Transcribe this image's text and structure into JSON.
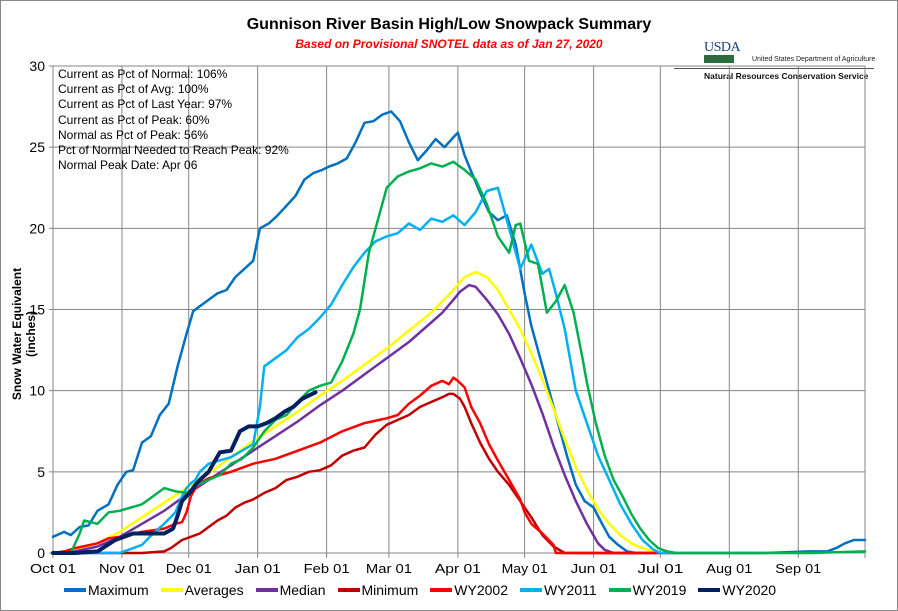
{
  "title": "Gunnison River Basin High/Low Snowpack Summary",
  "subtitle": "Based on Provisional SNOTEL data as of Jan 27, 2020",
  "logo": {
    "mark": "USDA",
    "department": "United States Department of Agriculture",
    "agency": "Natural Resources Conservation Service"
  },
  "stats": [
    "Current  as Pct of Normal: 106%",
    "Current  as Pct of Avg: 100%",
    "Current  as Pct of Last Year: 97%",
    "Current  as Pct of Peak: 60%",
    "Normal  as Pct of Peak: 56%",
    "Pct of Normal Needed  to Reach Peak: 92%",
    "Normal  Peak Date: Apr 06"
  ],
  "chart_data": {
    "type": "line",
    "title": "Gunnison River Basin High/Low Snowpack Summary",
    "subtitle": "Based on Provisional SNOTEL data as of Jan 27, 2020",
    "xlabel": "",
    "ylabel": "Snow Water Equivalent (inches)",
    "ylim": [
      0,
      30
    ],
    "yticks": [
      0,
      5,
      10,
      15,
      20,
      25,
      30
    ],
    "xlim_days": [
      0,
      365
    ],
    "xtick_labels": [
      "Oct 01",
      "Nov 01",
      "Dec 01",
      "Jan 01",
      "Feb 01",
      "Mar 01",
      "Apr 01",
      "May 01",
      "Jun 01",
      "Jul 01",
      "Aug 01",
      "Sep 01"
    ],
    "xtick_days": [
      0,
      31,
      61,
      92,
      123,
      151,
      182,
      212,
      243,
      273,
      304,
      335
    ],
    "grid": true,
    "legend_position": "bottom",
    "series": [
      {
        "name": "Maximum",
        "color": "#0070c0",
        "width": 2.5,
        "x": [
          0,
          5,
          8,
          12,
          16,
          20,
          25,
          29,
          33,
          36,
          40,
          44,
          48,
          52,
          56,
          60,
          63,
          66,
          70,
          74,
          78,
          82,
          86,
          90,
          93,
          97,
          101,
          105,
          109,
          113,
          117,
          121,
          124,
          128,
          132,
          136,
          140,
          144,
          148,
          152,
          156,
          160,
          164,
          168,
          172,
          176,
          180,
          182,
          185,
          188,
          192,
          196,
          200,
          204,
          208,
          212,
          215,
          219,
          223,
          227,
          231,
          235,
          239,
          243,
          246,
          250,
          254,
          258,
          262,
          266,
          270,
          274,
          278,
          282,
          286,
          290,
          300,
          320,
          340,
          348,
          352,
          356,
          360,
          365
        ],
        "y": [
          1.0,
          1.3,
          1.1,
          1.6,
          1.7,
          2.6,
          3.0,
          4.2,
          5.0,
          5.1,
          6.8,
          7.2,
          8.5,
          9.2,
          11.5,
          13.5,
          14.9,
          15.2,
          15.6,
          16.0,
          16.2,
          17.0,
          17.5,
          18.0,
          20.0,
          20.3,
          20.8,
          21.4,
          22.0,
          23.0,
          23.4,
          23.6,
          23.8,
          24.0,
          24.3,
          25.3,
          26.5,
          26.6,
          27.0,
          27.2,
          26.6,
          25.3,
          24.2,
          24.8,
          25.5,
          25.0,
          25.6,
          25.9,
          24.5,
          23.5,
          22.2,
          21.0,
          20.5,
          20.8,
          19.0,
          16.0,
          14.0,
          12.0,
          10.0,
          8.0,
          6.0,
          4.2,
          3.2,
          2.8,
          2.0,
          1.0,
          0.5,
          0.1,
          0.0,
          0.0,
          0.0,
          0.0,
          0.0,
          0.0,
          0.0,
          0.0,
          0.0,
          0.0,
          0.1,
          0.1,
          0.3,
          0.6,
          0.8,
          0.8
        ]
      },
      {
        "name": "Averages",
        "color": "#ffff00",
        "width": 2.5,
        "x": [
          0,
          10,
          20,
          30,
          40,
          50,
          60,
          70,
          80,
          90,
          100,
          110,
          120,
          130,
          140,
          150,
          160,
          170,
          175,
          180,
          185,
          190,
          195,
          200,
          205,
          210,
          215,
          220,
          225,
          230,
          235,
          240,
          245,
          250,
          255,
          260,
          265,
          270,
          273,
          280
        ],
        "y": [
          0.0,
          0.2,
          0.6,
          1.3,
          2.2,
          3.1,
          4.0,
          4.9,
          5.9,
          6.9,
          7.8,
          8.7,
          9.7,
          10.6,
          11.6,
          12.6,
          13.7,
          14.8,
          15.5,
          16.2,
          17.0,
          17.3,
          17.0,
          16.2,
          15.0,
          13.8,
          12.3,
          10.7,
          8.9,
          7.0,
          5.3,
          3.9,
          2.7,
          1.8,
          1.1,
          0.6,
          0.3,
          0.1,
          0.0,
          0.0
        ]
      },
      {
        "name": "Median",
        "color": "#7030a0",
        "width": 2.5,
        "x": [
          0,
          10,
          20,
          30,
          40,
          50,
          60,
          70,
          80,
          90,
          100,
          110,
          120,
          130,
          140,
          150,
          160,
          170,
          175,
          180,
          183,
          187,
          190,
          195,
          200,
          205,
          210,
          215,
          220,
          225,
          230,
          235,
          240,
          245,
          248,
          252,
          256,
          260,
          265
        ],
        "y": [
          0.0,
          0.1,
          0.4,
          1.0,
          1.8,
          2.6,
          3.6,
          4.5,
          5.4,
          6.3,
          7.2,
          8.1,
          9.1,
          10.0,
          11.0,
          12.0,
          13.0,
          14.2,
          14.8,
          15.6,
          16.1,
          16.5,
          16.4,
          15.6,
          14.7,
          13.5,
          12.0,
          10.4,
          8.6,
          6.6,
          4.8,
          3.2,
          1.8,
          0.6,
          0.2,
          0.0,
          0.0,
          0.0,
          0.0
        ]
      },
      {
        "name": "Minimum",
        "color": "#c00000",
        "width": 2.5,
        "x": [
          0,
          20,
          40,
          50,
          53,
          58,
          62,
          66,
          70,
          74,
          78,
          82,
          86,
          90,
          95,
          100,
          105,
          110,
          115,
          120,
          125,
          130,
          135,
          140,
          145,
          150,
          155,
          160,
          165,
          170,
          175,
          178,
          180,
          183,
          185,
          188,
          192,
          196,
          200,
          205,
          210,
          215,
          220,
          225,
          230,
          235,
          240,
          243,
          250,
          260,
          270
        ],
        "y": [
          0.0,
          0.0,
          0.0,
          0.1,
          0.3,
          0.8,
          1.0,
          1.2,
          1.6,
          2.0,
          2.3,
          2.8,
          3.1,
          3.3,
          3.7,
          4.0,
          4.5,
          4.7,
          5.0,
          5.1,
          5.4,
          6.0,
          6.3,
          6.5,
          7.3,
          7.9,
          8.2,
          8.5,
          9.0,
          9.3,
          9.6,
          9.8,
          9.8,
          9.5,
          9.0,
          8.0,
          6.8,
          5.8,
          5.0,
          4.2,
          3.2,
          2.2,
          1.1,
          0.4,
          0.0,
          0.0,
          0.0,
          0.0,
          0.0,
          0.0,
          0.0
        ]
      },
      {
        "name": "WY2002",
        "color": "#ff0000",
        "width": 2.5,
        "x": [
          0,
          5,
          10,
          20,
          25,
          30,
          40,
          50,
          55,
          58,
          60,
          62,
          64,
          66,
          70,
          80,
          90,
          100,
          110,
          120,
          130,
          140,
          150,
          155,
          160,
          165,
          170,
          175,
          178,
          180,
          182,
          185,
          188,
          192,
          196,
          200,
          205,
          210,
          212,
          215,
          220,
          225,
          226,
          240,
          260,
          280
        ],
        "y": [
          0.0,
          0.1,
          0.3,
          0.6,
          0.9,
          1.0,
          1.3,
          1.5,
          1.8,
          1.9,
          2.5,
          3.5,
          4.0,
          4.3,
          4.6,
          5.0,
          5.5,
          5.8,
          6.3,
          6.8,
          7.5,
          8.0,
          8.3,
          8.5,
          9.2,
          9.7,
          10.3,
          10.6,
          10.4,
          10.8,
          10.6,
          10.2,
          9.0,
          8.0,
          6.7,
          5.7,
          4.5,
          3.3,
          2.5,
          1.8,
          1.2,
          0.5,
          0.0,
          0.0,
          0.0,
          0.0
        ]
      },
      {
        "name": "WY2011",
        "color": "#00b0f0",
        "width": 2.5,
        "x": [
          0,
          20,
          30,
          40,
          45,
          50,
          55,
          58,
          60,
          62,
          64,
          66,
          70,
          80,
          90,
          93,
          95,
          100,
          105,
          110,
          115,
          120,
          125,
          130,
          135,
          140,
          145,
          150,
          155,
          160,
          165,
          170,
          175,
          180,
          185,
          190,
          195,
          200,
          205,
          210,
          215,
          220,
          223,
          226,
          230,
          235,
          240,
          245,
          250,
          255,
          260,
          265,
          270,
          273,
          280
        ],
        "y": [
          0.0,
          0.0,
          0.0,
          0.5,
          1.2,
          1.8,
          2.5,
          3.5,
          4.0,
          4.3,
          4.5,
          5.0,
          5.5,
          5.9,
          6.7,
          9.0,
          11.5,
          12.0,
          12.5,
          13.3,
          13.8,
          14.5,
          15.3,
          16.5,
          17.6,
          18.5,
          19.2,
          19.5,
          19.7,
          20.3,
          19.9,
          20.6,
          20.4,
          20.8,
          20.2,
          21.0,
          22.3,
          22.5,
          20.0,
          17.5,
          19.0,
          17.2,
          17.5,
          16.0,
          13.8,
          10.0,
          8.0,
          6.0,
          4.5,
          3.0,
          1.8,
          0.8,
          0.2,
          0.0,
          0.0
        ]
      },
      {
        "name": "WY2019",
        "color": "#00b050",
        "width": 2.5,
        "x": [
          0,
          8,
          12,
          14,
          20,
          25,
          30,
          35,
          40,
          45,
          50,
          55,
          60,
          65,
          70,
          75,
          80,
          85,
          90,
          95,
          100,
          105,
          110,
          115,
          120,
          125,
          130,
          135,
          138,
          142,
          146,
          150,
          155,
          160,
          165,
          170,
          175,
          180,
          185,
          190,
          195,
          200,
          205,
          208,
          210,
          214,
          218,
          222,
          226,
          230,
          234,
          238,
          240,
          244,
          248,
          252,
          256,
          260,
          264,
          268,
          272,
          276,
          280,
          300,
          340,
          365
        ],
        "y": [
          0.0,
          0.0,
          1.2,
          2.0,
          1.8,
          2.5,
          2.6,
          2.8,
          3.0,
          3.5,
          4.0,
          3.8,
          3.7,
          4.2,
          4.5,
          4.8,
          5.5,
          5.8,
          6.5,
          7.5,
          8.2,
          8.5,
          9.3,
          10.0,
          10.3,
          10.5,
          11.8,
          13.5,
          15.0,
          18.5,
          20.5,
          22.5,
          23.2,
          23.5,
          23.7,
          24.0,
          23.8,
          24.1,
          23.6,
          23.0,
          21.5,
          19.5,
          18.5,
          20.2,
          20.3,
          18.0,
          17.8,
          14.8,
          15.5,
          16.5,
          14.8,
          12.0,
          10.5,
          8.0,
          6.0,
          4.5,
          3.5,
          2.4,
          1.5,
          0.8,
          0.3,
          0.1,
          0.0,
          0.0,
          0.0,
          0.1
        ]
      },
      {
        "name": "WY2020",
        "color": "#002060",
        "width": 4,
        "x": [
          0,
          10,
          20,
          28,
          32,
          36,
          40,
          45,
          50,
          54,
          56,
          58,
          60,
          62,
          64,
          66,
          70,
          75,
          80,
          84,
          88,
          92,
          96,
          100,
          104,
          108,
          112,
          118
        ],
        "y": [
          0.0,
          0.0,
          0.1,
          0.8,
          1.0,
          1.2,
          1.2,
          1.2,
          1.2,
          1.5,
          2.3,
          3.2,
          3.5,
          3.8,
          4.2,
          4.5,
          5.0,
          6.2,
          6.3,
          7.5,
          7.8,
          7.8,
          8.0,
          8.3,
          8.7,
          9.0,
          9.5,
          9.9
        ]
      }
    ]
  }
}
